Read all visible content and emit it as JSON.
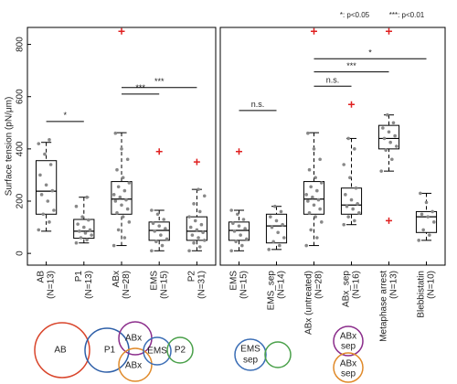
{
  "chart_data": [
    {
      "type": "box",
      "ylabel": "Surface tension (pN/μm)",
      "ylim": [
        -45,
        865
      ],
      "yticks": [
        0,
        200,
        400,
        600,
        800
      ],
      "categories": [
        [
          "AB",
          "(N=13)"
        ],
        [
          "P1",
          "(N=13)"
        ],
        [
          "ABx",
          "(N=28)"
        ],
        [
          "EMS",
          "(N=15)"
        ],
        [
          "P2",
          "(N=31)"
        ]
      ],
      "boxes": [
        {
          "whisker_low": 85,
          "q1": 150,
          "median": 238,
          "q3": 355,
          "whisker_high": 425,
          "outliers": [],
          "points": [
            90,
            120,
            150,
            165,
            200,
            225,
            240,
            262,
            300,
            340,
            380,
            420,
            435
          ]
        },
        {
          "whisker_low": 40,
          "q1": 58,
          "median": 85,
          "q3": 130,
          "whisker_high": 215,
          "outliers": [],
          "points": [
            40,
            52,
            60,
            70,
            78,
            85,
            90,
            100,
            112,
            128,
            140,
            180,
            215
          ]
        },
        {
          "whisker_low": 30,
          "q1": 150,
          "median": 208,
          "q3": 275,
          "whisker_high": 462,
          "outliers": [
            850
          ],
          "points": [
            30,
            60,
            90,
            120,
            140,
            155,
            170,
            185,
            200,
            205,
            215,
            225,
            240,
            255,
            270,
            290,
            320,
            360,
            400,
            460
          ]
        },
        {
          "whisker_low": 10,
          "q1": 50,
          "median": 88,
          "q3": 120,
          "whisker_high": 165,
          "outliers": [
            390
          ],
          "points": [
            10,
            30,
            45,
            55,
            70,
            85,
            95,
            105,
            115,
            130,
            150,
            165
          ]
        },
        {
          "whisker_low": 10,
          "q1": 50,
          "median": 85,
          "q3": 140,
          "whisker_high": 245,
          "outliers": [
            350
          ],
          "points": [
            10,
            25,
            40,
            50,
            60,
            70,
            80,
            90,
            100,
            110,
            125,
            140,
            160,
            190,
            220,
            245
          ]
        }
      ],
      "annotations": [
        {
          "text": "*",
          "between": [
            0,
            1
          ],
          "y": 505
        },
        {
          "text": "***",
          "between": [
            2,
            3
          ],
          "y": 610
        },
        {
          "text": "***",
          "between": [
            2,
            4
          ],
          "y": 635
        }
      ]
    },
    {
      "type": "box",
      "ylim": [
        -45,
        865
      ],
      "significance_legend": [
        "*: p<0.05",
        "***: p<0.01"
      ],
      "categories": [
        [
          "EMS",
          "(N=15)"
        ],
        [
          "EMS_sep",
          "(N=14)"
        ],
        [
          "ABx (untreated)",
          "(N=28)"
        ],
        [
          "ABx_sep",
          "(N=16)"
        ],
        [
          "Metaphase arrest",
          "(N=13)"
        ],
        [
          "Blebbistatin",
          "(N=10)"
        ]
      ],
      "boxes": [
        {
          "whisker_low": 10,
          "q1": 50,
          "median": 88,
          "q3": 120,
          "whisker_high": 165,
          "outliers": [
            390
          ],
          "points": [
            10,
            30,
            45,
            55,
            70,
            85,
            95,
            105,
            115,
            130,
            150,
            165
          ]
        },
        {
          "whisker_low": 15,
          "q1": 40,
          "median": 105,
          "q3": 150,
          "whisker_high": 180,
          "outliers": [],
          "points": [
            15,
            30,
            45,
            60,
            80,
            100,
            110,
            125,
            140,
            160,
            180
          ]
        },
        {
          "whisker_low": 30,
          "q1": 150,
          "median": 208,
          "q3": 275,
          "whisker_high": 462,
          "outliers": [
            850
          ],
          "points": [
            30,
            60,
            90,
            120,
            140,
            155,
            170,
            185,
            200,
            205,
            215,
            225,
            240,
            255,
            270,
            290,
            320,
            360,
            400,
            460
          ]
        },
        {
          "whisker_low": 110,
          "q1": 150,
          "median": 185,
          "q3": 250,
          "whisker_high": 440,
          "outliers": [
            570
          ],
          "points": [
            110,
            125,
            140,
            155,
            170,
            180,
            190,
            205,
            225,
            250,
            290,
            340,
            400,
            440
          ]
        },
        {
          "whisker_low": 315,
          "q1": 400,
          "median": 440,
          "q3": 490,
          "whisker_high": 530,
          "outliers": [
            850,
            125
          ],
          "points": [
            315,
            360,
            395,
            410,
            425,
            440,
            450,
            465,
            480,
            500,
            530
          ]
        },
        {
          "whisker_low": 50,
          "q1": 80,
          "median": 140,
          "q3": 160,
          "whisker_high": 230,
          "outliers": [],
          "points": [
            50,
            70,
            90,
            120,
            140,
            150,
            160,
            195,
            230
          ]
        }
      ],
      "annotations": [
        {
          "text": "n.s.",
          "between": [
            0,
            1
          ],
          "y": 547
        },
        {
          "text": "n.s.",
          "between": [
            2,
            3
          ],
          "y": 640
        },
        {
          "text": "***",
          "between": [
            2,
            4
          ],
          "y": 695
        },
        {
          "text": "*",
          "between": [
            2,
            5
          ],
          "y": 745
        }
      ]
    }
  ],
  "diagrams": [
    "AB",
    "P1",
    "ABx",
    "EMS",
    "P2",
    "ABx",
    "EMS",
    "sep",
    "ABx",
    "sep",
    "ABx",
    "sep"
  ]
}
